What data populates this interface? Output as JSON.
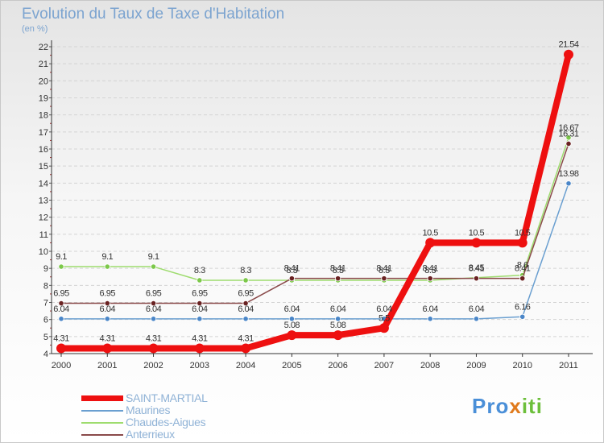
{
  "header": {
    "title": "Evolution du Taux de Taxe d'Habitation",
    "subtitle": "(en %)"
  },
  "chart_data": {
    "type": "line",
    "title": "Evolution du Taux de Taxe d'Habitation",
    "subtitle": "(en %)",
    "xlabel": "",
    "ylabel": "(en %)",
    "x": [
      "2000",
      "2001",
      "2002",
      "2003",
      "2004",
      "2005",
      "2006",
      "2007",
      "2008",
      "2009",
      "2010",
      "2011"
    ],
    "y_ticks": [
      "4",
      "5",
      "6",
      "7",
      "8",
      "9",
      "10",
      "11",
      "12",
      "13",
      "14",
      "15",
      "16",
      "17",
      "18",
      "19",
      "20",
      "21",
      "22"
    ],
    "ylim": [
      4,
      22
    ],
    "legend_position": "bottom-left",
    "series": [
      {
        "name": "Maurines",
        "color": "#6a9fd0",
        "marker": "#4a86c8",
        "values": [
          6.04,
          6.04,
          6.04,
          6.04,
          6.04,
          6.04,
          6.04,
          6.04,
          6.04,
          6.04,
          6.16,
          13.98
        ],
        "labels": [
          "6.04",
          "6.04",
          "6.04",
          "6.04",
          "6.04",
          "6.04",
          "6.04",
          "6.04",
          "6.04",
          "6.04",
          "6.16",
          "13.98"
        ]
      },
      {
        "name": "Chaudes-Aigues",
        "color": "#9edc6e",
        "marker": "#7cc84a",
        "values": [
          9.1,
          9.1,
          9.1,
          8.3,
          8.3,
          8.3,
          8.3,
          8.3,
          8.3,
          8.45,
          8.6,
          16.67
        ],
        "labels": [
          "9.1",
          "9.1",
          "9.1",
          "8.3",
          "8.3",
          "8.3",
          "8.3",
          "8.3",
          "8.3",
          "8.45",
          "8.6",
          "16.67"
        ]
      },
      {
        "name": "Anterrieux",
        "color": "#8a4a4a",
        "marker": "#6a2222",
        "values": [
          6.95,
          6.95,
          6.95,
          6.95,
          6.95,
          8.41,
          8.41,
          8.41,
          8.41,
          8.41,
          8.41,
          16.31
        ],
        "labels": [
          "6.95",
          "6.95",
          "6.95",
          "6.95",
          "6.95",
          "8.41",
          "8.41",
          "8.41",
          "8.41",
          "8.41",
          "8.41",
          "16.31"
        ]
      },
      {
        "name": "SAINT-MARTIAL",
        "color": "#ee1010",
        "marker": "#ee1010",
        "values": [
          4.31,
          4.31,
          4.31,
          4.31,
          4.31,
          5.08,
          5.08,
          5.5,
          10.5,
          10.5,
          10.5,
          21.54
        ],
        "labels": [
          "4.31",
          "4.31",
          "4.31",
          "4.31",
          "4.31",
          "5.08",
          "5.08",
          "5.5",
          "10.5",
          "10.5",
          "10.5",
          "21.54"
        ]
      }
    ]
  },
  "legend": {
    "items": [
      {
        "label": "SAINT-MARTIAL",
        "color": "#ee1010"
      },
      {
        "label": "Maurines",
        "color": "#6a9fd0"
      },
      {
        "label": "Chaudes-Aigues",
        "color": "#9edc6e"
      },
      {
        "label": "Anterrieux",
        "color": "#8a4a4a"
      }
    ]
  },
  "logo": {
    "part1": "Pro",
    "part2": "x",
    "part3": "iti"
  }
}
